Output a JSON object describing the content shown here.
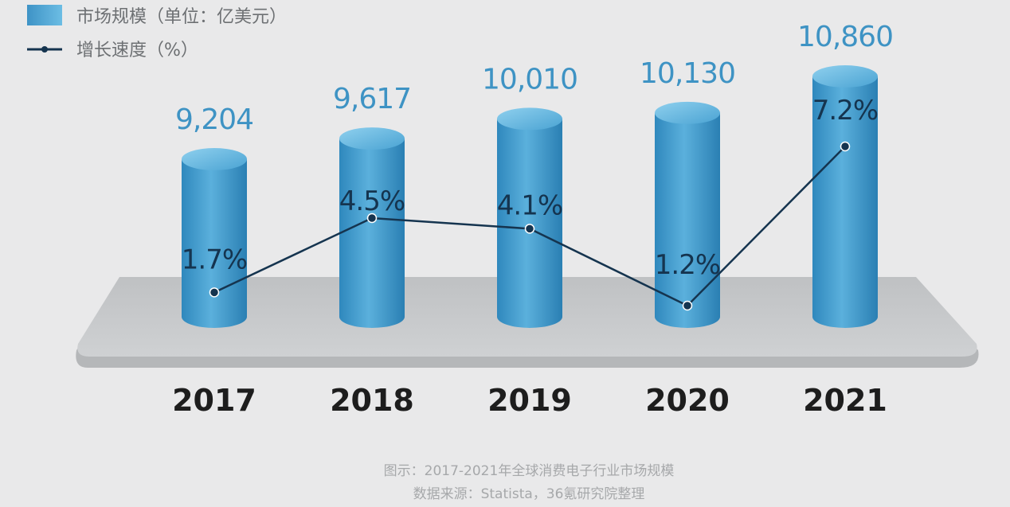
{
  "legend": {
    "bar_label": "市场规模（单位：亿美元）",
    "line_label": "增长速度（%）"
  },
  "captions": [
    "图示：2017-2021年全球消费电子行业市场规模",
    "数据来源：Statista，36氪研究院整理"
  ],
  "colors": {
    "bar": "#3f9acb",
    "bar_light": "#7cc4e6",
    "bar_dark": "#2d86bb",
    "line": "#15344f",
    "value_label": "#3e93c4",
    "platform": "#c6c8ca",
    "background": "#e9e9ea"
  },
  "chart_data": {
    "type": "bar",
    "categories": [
      "2017",
      "2018",
      "2019",
      "2020",
      "2021"
    ],
    "series": [
      {
        "name": "市场规模（单位：亿美元）",
        "kind": "bar",
        "values": [
          9204,
          9617,
          10010,
          10130,
          10860
        ],
        "labels": [
          "9,204",
          "9,617",
          "10,010",
          "10,130",
          "10,860"
        ]
      },
      {
        "name": "增长速度（%）",
        "kind": "line",
        "values": [
          1.7,
          4.5,
          4.1,
          1.2,
          7.2
        ],
        "labels": [
          "1.7%",
          "4.5%",
          "4.1%",
          "1.2%",
          "7.2%"
        ]
      }
    ],
    "legend_position": "top-left",
    "grid": false
  }
}
